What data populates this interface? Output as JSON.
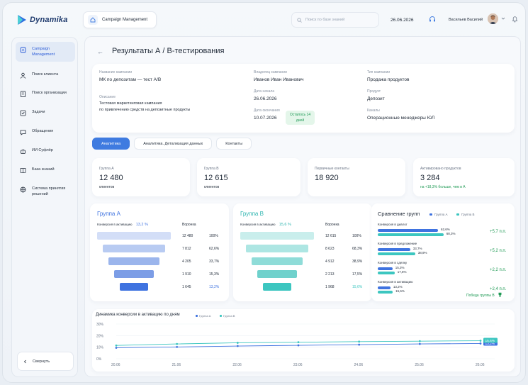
{
  "app": {
    "name": "Dynamika"
  },
  "topbar": {
    "breadcrumb": "Campaign Management",
    "search_placeholder": "Поиск по базе знаний",
    "date": "26.06.2026",
    "user_name": "Васильев Василий"
  },
  "sidebar": {
    "items": [
      {
        "label": "Campaign Management",
        "icon": "campaign-icon",
        "active": true
      },
      {
        "label": "Поиск клиента",
        "icon": "user-icon"
      },
      {
        "label": "Поиск организации",
        "icon": "building-icon"
      },
      {
        "label": "Задачи",
        "icon": "checkbox-icon"
      },
      {
        "label": "Обращения",
        "icon": "chat-icon"
      },
      {
        "label": "ИИ Суфлёр",
        "icon": "robot-icon"
      },
      {
        "label": "База знаний",
        "icon": "book-icon"
      },
      {
        "label": "Система принятия решений",
        "icon": "globe-icon"
      }
    ],
    "collapse_label": "Свернуть"
  },
  "page": {
    "title": "Результаты А / В-тестирования"
  },
  "campaign": {
    "name_label": "Название кампании",
    "name": "МК по депозитам — тест А/В",
    "description_label": "Описание",
    "description_line1": "Тестовая маркетинговая кампания",
    "description_line2": "по привлечению средств на депозитные продукты",
    "owner_label": "Владелец кампании",
    "owner": "Иванов Иван Иванович",
    "start_label": "Дата начала",
    "start": "26.06.2026",
    "end_label": "Дата окончания",
    "end": "10.07.2026",
    "remaining_line1": "Осталось 14",
    "remaining_line2": "дней",
    "type_label": "Тип кампании",
    "type": "Продажа продуктов",
    "product_label": "Продукт",
    "product": "Депозит",
    "channels_label": "Каналы",
    "channels": "Операционные менеджеры ЮЛ"
  },
  "tabs": [
    "Аналитика",
    "Аналитика. Детализация данных",
    "Контакты"
  ],
  "kpis": [
    {
      "label": "Группа А",
      "value": "12 480",
      "sub": "клиентов"
    },
    {
      "label": "Группа В",
      "value": "12 615",
      "sub": "клиентов"
    },
    {
      "label": "Первичные контакты",
      "value": "18 920",
      "sub": ""
    },
    {
      "label": "Активировано продуктов",
      "value": "3 284",
      "sub": "на +18,3% больше, чем в А"
    }
  ],
  "funnel_a": {
    "title": "Группа А",
    "conversion_label": "Конверсия в активацию",
    "conversion_value": "13,2 %",
    "stage_header": "Воронка",
    "rows": [
      {
        "count": "12 480",
        "pct": "100%",
        "share": 1.0
      },
      {
        "count": "7 812",
        "pct": "62,6%",
        "share": 0.626
      },
      {
        "count": "4 205",
        "pct": "33,7%",
        "share": 0.337
      },
      {
        "count": "1 910",
        "pct": "15,3%",
        "share": 0.153
      },
      {
        "count": "1 645",
        "pct": "13,2%",
        "share": 0.132
      }
    ]
  },
  "funnel_b": {
    "title": "Группа В",
    "conversion_label": "Конверсия в активацию",
    "conversion_value": "15,6 %",
    "stage_header": "Воронка",
    "rows": [
      {
        "count": "12 615",
        "pct": "100%",
        "share": 1.0
      },
      {
        "count": "8 623",
        "pct": "68,3%",
        "share": 0.683
      },
      {
        "count": "4 912",
        "pct": "38,9%",
        "share": 0.389
      },
      {
        "count": "2 213",
        "pct": "17,5%",
        "share": 0.175
      },
      {
        "count": "1 968",
        "pct": "15,6%",
        "share": 0.156
      }
    ]
  },
  "comparison": {
    "title": "Сравнение групп",
    "legend_a": "Группа А",
    "legend_b": "Группа В",
    "rows": [
      {
        "label": "Конверсия в диалог",
        "a": "62,6%",
        "b": "68,3%",
        "a_val": 62.6,
        "b_val": 68.3,
        "delta": "+5,7 п.п."
      },
      {
        "label": "Конверсия в предложение",
        "a": "33,7%",
        "b": "38,9%",
        "a_val": 33.7,
        "b_val": 38.9,
        "delta": "+5,2 п.п."
      },
      {
        "label": "Конверсия в сделку",
        "a": "15,3%",
        "b": "17,5%",
        "a_val": 15.3,
        "b_val": 17.5,
        "delta": "+2,2 п.п."
      },
      {
        "label": "Конверсия в активацию",
        "a": "13,2%",
        "b": "15,6%",
        "a_val": 13.2,
        "b_val": 15.6,
        "delta": "+2,4 п.п."
      }
    ],
    "winner": "Победа группы В"
  },
  "colors": {
    "group_a": "#3f73e0",
    "group_b": "#3cc6c0",
    "positive": "#1f9a55",
    "accent": "#3f7be0"
  },
  "chart_data": {
    "type": "line",
    "title": "Динамика конверсии в активацию по дням",
    "x": [
      "20.06",
      "21.06",
      "22.06",
      "23.06",
      "24.06",
      "25.06",
      "26.06"
    ],
    "series": [
      {
        "name": "Группа А",
        "values": [
          9.5,
          10.2,
          11.0,
          11.6,
          12.2,
          12.8,
          13.2
        ]
      },
      {
        "name": "Группа В",
        "values": [
          11.5,
          12.8,
          13.8,
          14.3,
          14.8,
          15.2,
          15.6
        ]
      }
    ],
    "end_labels": [
      "13,2%",
      "15,6%"
    ],
    "yticks": [
      "0%",
      "10%",
      "20%",
      "30%"
    ],
    "ylim": [
      0,
      30
    ],
    "grid": true,
    "legend": "top"
  }
}
